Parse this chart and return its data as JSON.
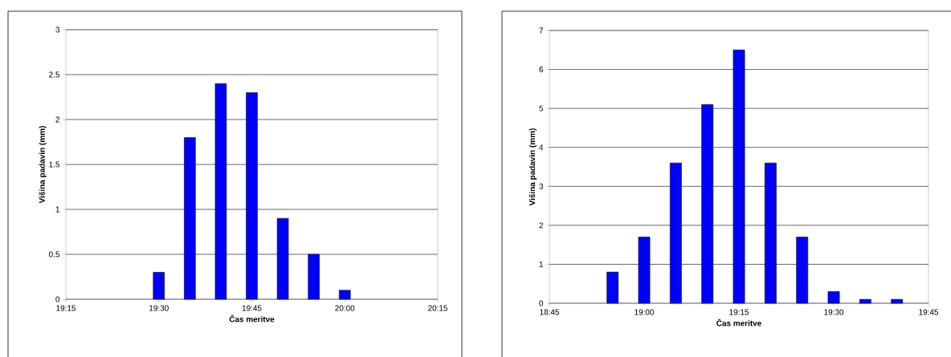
{
  "chart_data": [
    {
      "type": "bar",
      "xlabel": "Čas meritve",
      "ylabel": "Višina padavin (mm)",
      "color": "#0000ff",
      "grid": "y",
      "x": [
        19.5,
        19.583333,
        19.666667,
        19.75,
        19.833333,
        19.916667,
        20.0
      ],
      "values": [
        0.3,
        1.8,
        2.4,
        2.3,
        0.9,
        0.5,
        0.1
      ],
      "xlim": [
        19.25,
        20.25
      ],
      "xticks": [
        {
          "value": 19.25,
          "label": "19:15"
        },
        {
          "value": 19.5,
          "label": "19:30"
        },
        {
          "value": 19.75,
          "label": "19:45"
        },
        {
          "value": 20.0,
          "label": "20:00"
        },
        {
          "value": 20.25,
          "label": "20:15"
        }
      ],
      "ylim": [
        0,
        3
      ],
      "yticks": [
        0,
        0.5,
        1,
        1.5,
        2,
        2.5,
        3
      ]
    },
    {
      "type": "bar",
      "xlabel": "Čas meritve",
      "ylabel": "Višina padavin (mm)",
      "color": "#0000ff",
      "grid": "y",
      "x": [
        18.916667,
        19.0,
        19.083333,
        19.166667,
        19.25,
        19.333333,
        19.416667,
        19.5,
        19.583333,
        19.666667
      ],
      "values": [
        0.8,
        1.7,
        3.6,
        5.1,
        6.5,
        3.6,
        1.7,
        0.3,
        0.1,
        0.1
      ],
      "xlim": [
        18.75,
        19.75
      ],
      "xticks": [
        {
          "value": 18.75,
          "label": "18:45"
        },
        {
          "value": 19.0,
          "label": "19:00"
        },
        {
          "value": 19.25,
          "label": "19:15"
        },
        {
          "value": 19.5,
          "label": "19:30"
        },
        {
          "value": 19.75,
          "label": "19:45"
        }
      ],
      "ylim": [
        0,
        7
      ],
      "yticks": [
        0,
        1,
        2,
        3,
        4,
        5,
        6,
        7
      ]
    }
  ]
}
